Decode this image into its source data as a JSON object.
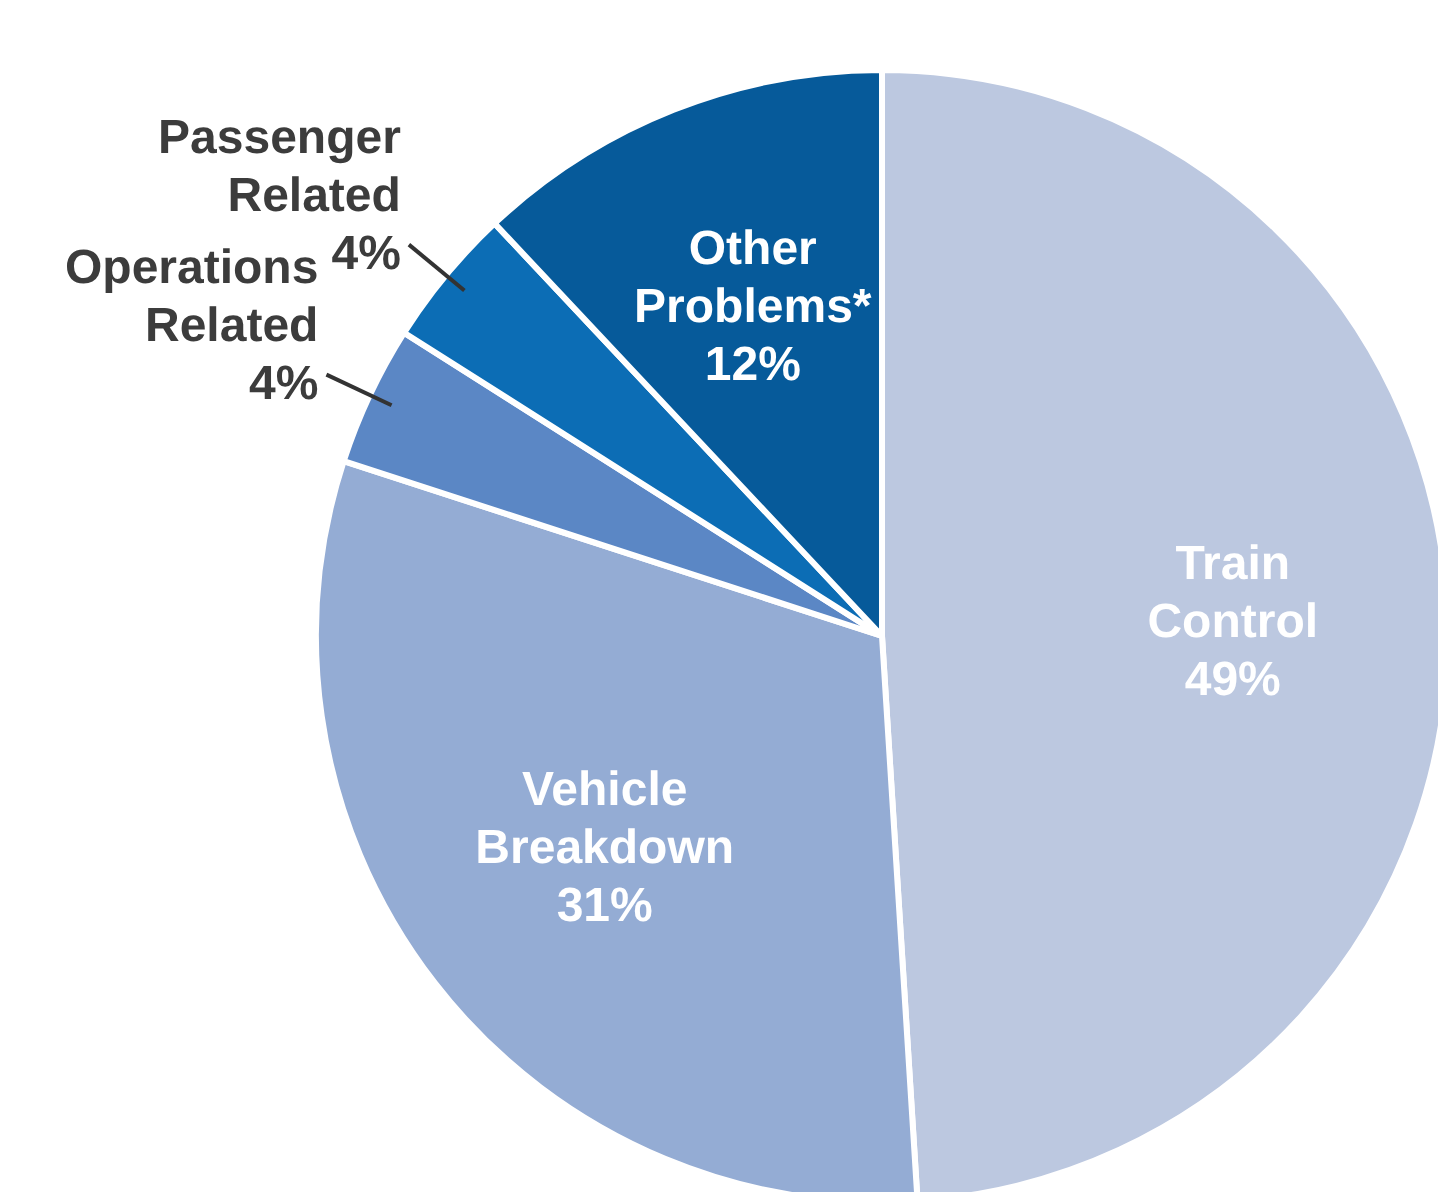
{
  "chart_data": {
    "type": "pie",
    "categories": [
      "Train Control",
      "Vehicle Breakdown",
      "Operations Related",
      "Passenger Related",
      "Other Problems*"
    ],
    "values": [
      49,
      31,
      4,
      4,
      12
    ],
    "colors": [
      "#bcc8e0",
      "#94acd4",
      "#5b87c5",
      "#0c6db5",
      "#065a9a"
    ],
    "value_labels": [
      "49%",
      "31%",
      "4%",
      "4%",
      "12%"
    ],
    "legend": false
  }
}
